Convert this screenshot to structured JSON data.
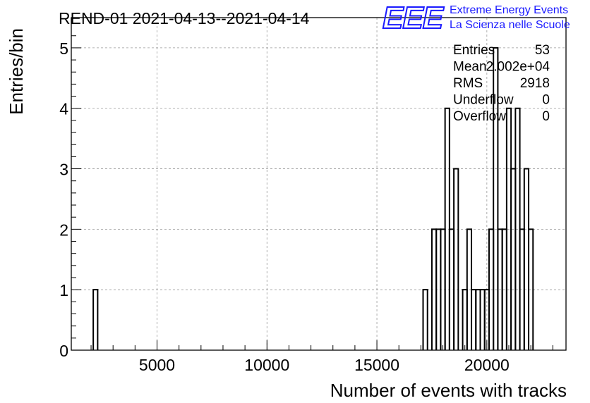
{
  "title": "REND-01 2021-04-13--2021-04-14",
  "logo": {
    "mark": "EEE",
    "line1": "Extreme Energy Events",
    "line2": "La Scienza nelle Scuole",
    "color": "#1a1aff"
  },
  "stats": [
    {
      "label": "Entries",
      "value": "53"
    },
    {
      "label": "Mean",
      "value": "2.002e+04"
    },
    {
      "label": "RMS",
      "value": "2918"
    },
    {
      "label": "Underflow",
      "value": "0"
    },
    {
      "label": "Overflow",
      "value": "0"
    }
  ],
  "chart_data": {
    "type": "histogram",
    "title": "REND-01 2021-04-13--2021-04-14",
    "xlabel": "Number of events with tracks",
    "ylabel": "Entries/bin",
    "xlim": [
      1100,
      23600
    ],
    "ylim": [
      0,
      5.5
    ],
    "xticks": [
      5000,
      10000,
      15000,
      20000
    ],
    "yticks": [
      0,
      1,
      2,
      3,
      4,
      5
    ],
    "grid": true,
    "line_color": "#000000",
    "bin_width": 200,
    "bins": [
      {
        "x0": 2100,
        "x1": 2300,
        "count": 1
      },
      {
        "x0": 17100,
        "x1": 17300,
        "count": 1
      },
      {
        "x0": 17500,
        "x1": 17700,
        "count": 2
      },
      {
        "x0": 17700,
        "x1": 17900,
        "count": 2
      },
      {
        "x0": 17900,
        "x1": 18100,
        "count": 2
      },
      {
        "x0": 18100,
        "x1": 18300,
        "count": 4
      },
      {
        "x0": 18300,
        "x1": 18500,
        "count": 2
      },
      {
        "x0": 18500,
        "x1": 18700,
        "count": 3
      },
      {
        "x0": 18900,
        "x1": 19100,
        "count": 1
      },
      {
        "x0": 19100,
        "x1": 19300,
        "count": 2
      },
      {
        "x0": 19300,
        "x1": 19500,
        "count": 1
      },
      {
        "x0": 19500,
        "x1": 19700,
        "count": 1
      },
      {
        "x0": 19700,
        "x1": 19900,
        "count": 1
      },
      {
        "x0": 19900,
        "x1": 20100,
        "count": 1
      },
      {
        "x0": 20100,
        "x1": 20300,
        "count": 2
      },
      {
        "x0": 20300,
        "x1": 20500,
        "count": 5
      },
      {
        "x0": 20500,
        "x1": 20700,
        "count": 2
      },
      {
        "x0": 20700,
        "x1": 20900,
        "count": 2
      },
      {
        "x0": 20900,
        "x1": 21100,
        "count": 4
      },
      {
        "x0": 21100,
        "x1": 21300,
        "count": 3
      },
      {
        "x0": 21300,
        "x1": 21500,
        "count": 4
      },
      {
        "x0": 21500,
        "x1": 21700,
        "count": 2
      },
      {
        "x0": 21700,
        "x1": 21900,
        "count": 3
      },
      {
        "x0": 21900,
        "x1": 22100,
        "count": 2
      }
    ]
  }
}
